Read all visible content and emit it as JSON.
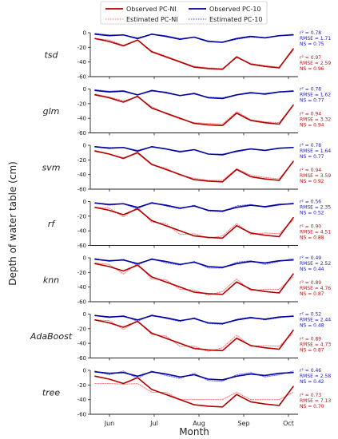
{
  "chart_data": {
    "type": "line",
    "xlabel": "Month",
    "ylabel": "Depth of water table (cm)",
    "x_ticks": [
      "Jun",
      "Jul",
      "Aug",
      "Sep",
      "Oct"
    ],
    "y_ticks": [
      0,
      -20,
      -40,
      -60
    ],
    "ylim": [
      -60,
      0
    ],
    "legend": {
      "placement": "top-center",
      "entries": [
        {
          "label": "Observed PC-NI",
          "color": "#b00000",
          "style": "solid"
        },
        {
          "label": "Observed PC-10",
          "color": "#00009c",
          "style": "solid"
        },
        {
          "label": "Estimated PC-NI",
          "color": "#ff8080",
          "style": "dotted"
        },
        {
          "label": "Estimated PC-10",
          "color": "#6b6bff",
          "style": "dotted"
        }
      ]
    },
    "x": [
      0,
      10,
      20,
      30,
      40,
      50,
      60,
      70,
      80,
      90,
      100,
      110,
      120,
      130,
      140
    ],
    "observed": {
      "pc10": [
        -2,
        -4,
        -3,
        -8,
        -2,
        -5,
        -9,
        -6,
        -12,
        -13,
        -8,
        -5,
        -7,
        -4,
        -3
      ],
      "pcni": [
        -8,
        -12,
        -18,
        -10,
        -26,
        -33,
        -40,
        -47,
        -49,
        -50,
        -33,
        -43,
        -46,
        -48,
        -22
      ]
    },
    "panels": [
      {
        "model": "tsd",
        "stats_pc10": {
          "r2": "r² = 0.78",
          "rmse": "RMSE = 1.71",
          "ns": "NS = 0.75"
        },
        "stats_pcni": {
          "r2": "r² = 0.97",
          "rmse": "RMSE = 2.59",
          "ns": "NS = 0.96"
        },
        "estimated_pc10": [
          -1,
          -3,
          -3,
          -7,
          -2,
          -4,
          -8,
          -6,
          -11,
          -13,
          -9,
          -6,
          -7,
          -4,
          -2
        ],
        "estimated_pcni": [
          -8,
          -10,
          -17,
          -10,
          -25,
          -32,
          -39,
          -46,
          -48,
          -49,
          -34,
          -42,
          -45,
          -47,
          -24
        ]
      },
      {
        "model": "glm",
        "stats_pc10": {
          "r2": "r² = 0.78",
          "rmse": "RMSE = 1.62",
          "ns": "NS = 0.77"
        },
        "stats_pcni": {
          "r2": "r² = 0.94",
          "rmse": "RMSE = 3.32",
          "ns": "NS = 0.94"
        },
        "estimated_pc10": [
          -1,
          -3,
          -2,
          -8,
          -3,
          -4,
          -9,
          -7,
          -11,
          -12,
          -8,
          -6,
          -6,
          -4,
          -2
        ],
        "estimated_pcni": [
          -7,
          -11,
          -16,
          -11,
          -24,
          -34,
          -41,
          -46,
          -47,
          -48,
          -31,
          -42,
          -45,
          -46,
          -22
        ]
      },
      {
        "model": "svm",
        "stats_pc10": {
          "r2": "r² = 0.78",
          "rmse": "RMSE = 1.64",
          "ns": "NS = 0.77"
        },
        "stats_pcni": {
          "r2": "r² = 0.94",
          "rmse": "RMSE = 3.59",
          "ns": "NS = 0.92"
        },
        "estimated_pc10": [
          -2,
          -3,
          -3,
          -7,
          -2,
          -5,
          -8,
          -6,
          -12,
          -12,
          -9,
          -5,
          -7,
          -4,
          -3
        ],
        "estimated_pcni": [
          -7,
          -12,
          -17,
          -11,
          -27,
          -31,
          -41,
          -45,
          -48,
          -48,
          -32,
          -41,
          -44,
          -46,
          -23
        ]
      },
      {
        "model": "rf",
        "stats_pc10": {
          "r2": "r² = 0.56",
          "rmse": "RMSE = 2.35",
          "ns": "NS = 0.52"
        },
        "stats_pcni": {
          "r2": "r² = 0.90",
          "rmse": "RMSE = 4.51",
          "ns": "NS = 0.88"
        },
        "estimated_pc10": [
          -2,
          -5,
          -3,
          -10,
          -1,
          -6,
          -10,
          -5,
          -13,
          -14,
          -6,
          -4,
          -8,
          -5,
          -2
        ],
        "estimated_pcni": [
          -8,
          -9,
          -21,
          -8,
          -28,
          -30,
          -45,
          -44,
          -50,
          -47,
          -30,
          -45,
          -43,
          -44,
          -25
        ]
      },
      {
        "model": "knn",
        "stats_pc10": {
          "r2": "r² = 0.49",
          "rmse": "RMSE = 2.52",
          "ns": "NS = 0.44"
        },
        "stats_pcni": {
          "r2": "r² = 0.89",
          "rmse": "RMSE = 4.76",
          "ns": "NS = 0.87"
        },
        "estimated_pc10": [
          -1,
          -5,
          -2,
          -10,
          -1,
          -7,
          -10,
          -5,
          -14,
          -14,
          -6,
          -4,
          -9,
          -5,
          -1
        ],
        "estimated_pcni": [
          -7,
          -9,
          -22,
          -8,
          -29,
          -30,
          -43,
          -44,
          -51,
          -46,
          -29,
          -45,
          -43,
          -43,
          -26
        ]
      },
      {
        "model": "AdaBoost",
        "stats_pc10": {
          "r2": "r² = 0.52",
          "rmse": "RMSE = 2.44",
          "ns": "NS = 0.48"
        },
        "stats_pcni": {
          "r2": "r² = 0.89",
          "rmse": "RMSE = 4.73",
          "ns": "NS = 0.87"
        },
        "estimated_pc10": [
          -2,
          -5,
          -2,
          -10,
          -1,
          -6,
          -10,
          -5,
          -13,
          -14,
          -7,
          -4,
          -8,
          -5,
          -2
        ],
        "estimated_pcni": [
          -8,
          -9,
          -21,
          -9,
          -28,
          -30,
          -44,
          -44,
          -51,
          -46,
          -29,
          -44,
          -43,
          -44,
          -26
        ]
      },
      {
        "model": "tree",
        "stats_pc10": {
          "r2": "r² = 0.46",
          "rmse": "RMSE = 2.58",
          "ns": "NS = 0.42"
        },
        "stats_pcni": {
          "r2": "r² = 0.73",
          "rmse": "RMSE = 7.13",
          "ns": "NS = 0.70"
        },
        "estimated_pc10": [
          -1,
          -6,
          -1,
          -11,
          -1,
          -7,
          -11,
          -4,
          -14,
          -15,
          -6,
          -3,
          -9,
          -6,
          -1
        ],
        "estimated_pcni": [
          -18,
          -18,
          -19,
          -18,
          -30,
          -30,
          -40,
          -40,
          -40,
          -40,
          -30,
          -40,
          -40,
          -40,
          -30
        ]
      }
    ]
  }
}
